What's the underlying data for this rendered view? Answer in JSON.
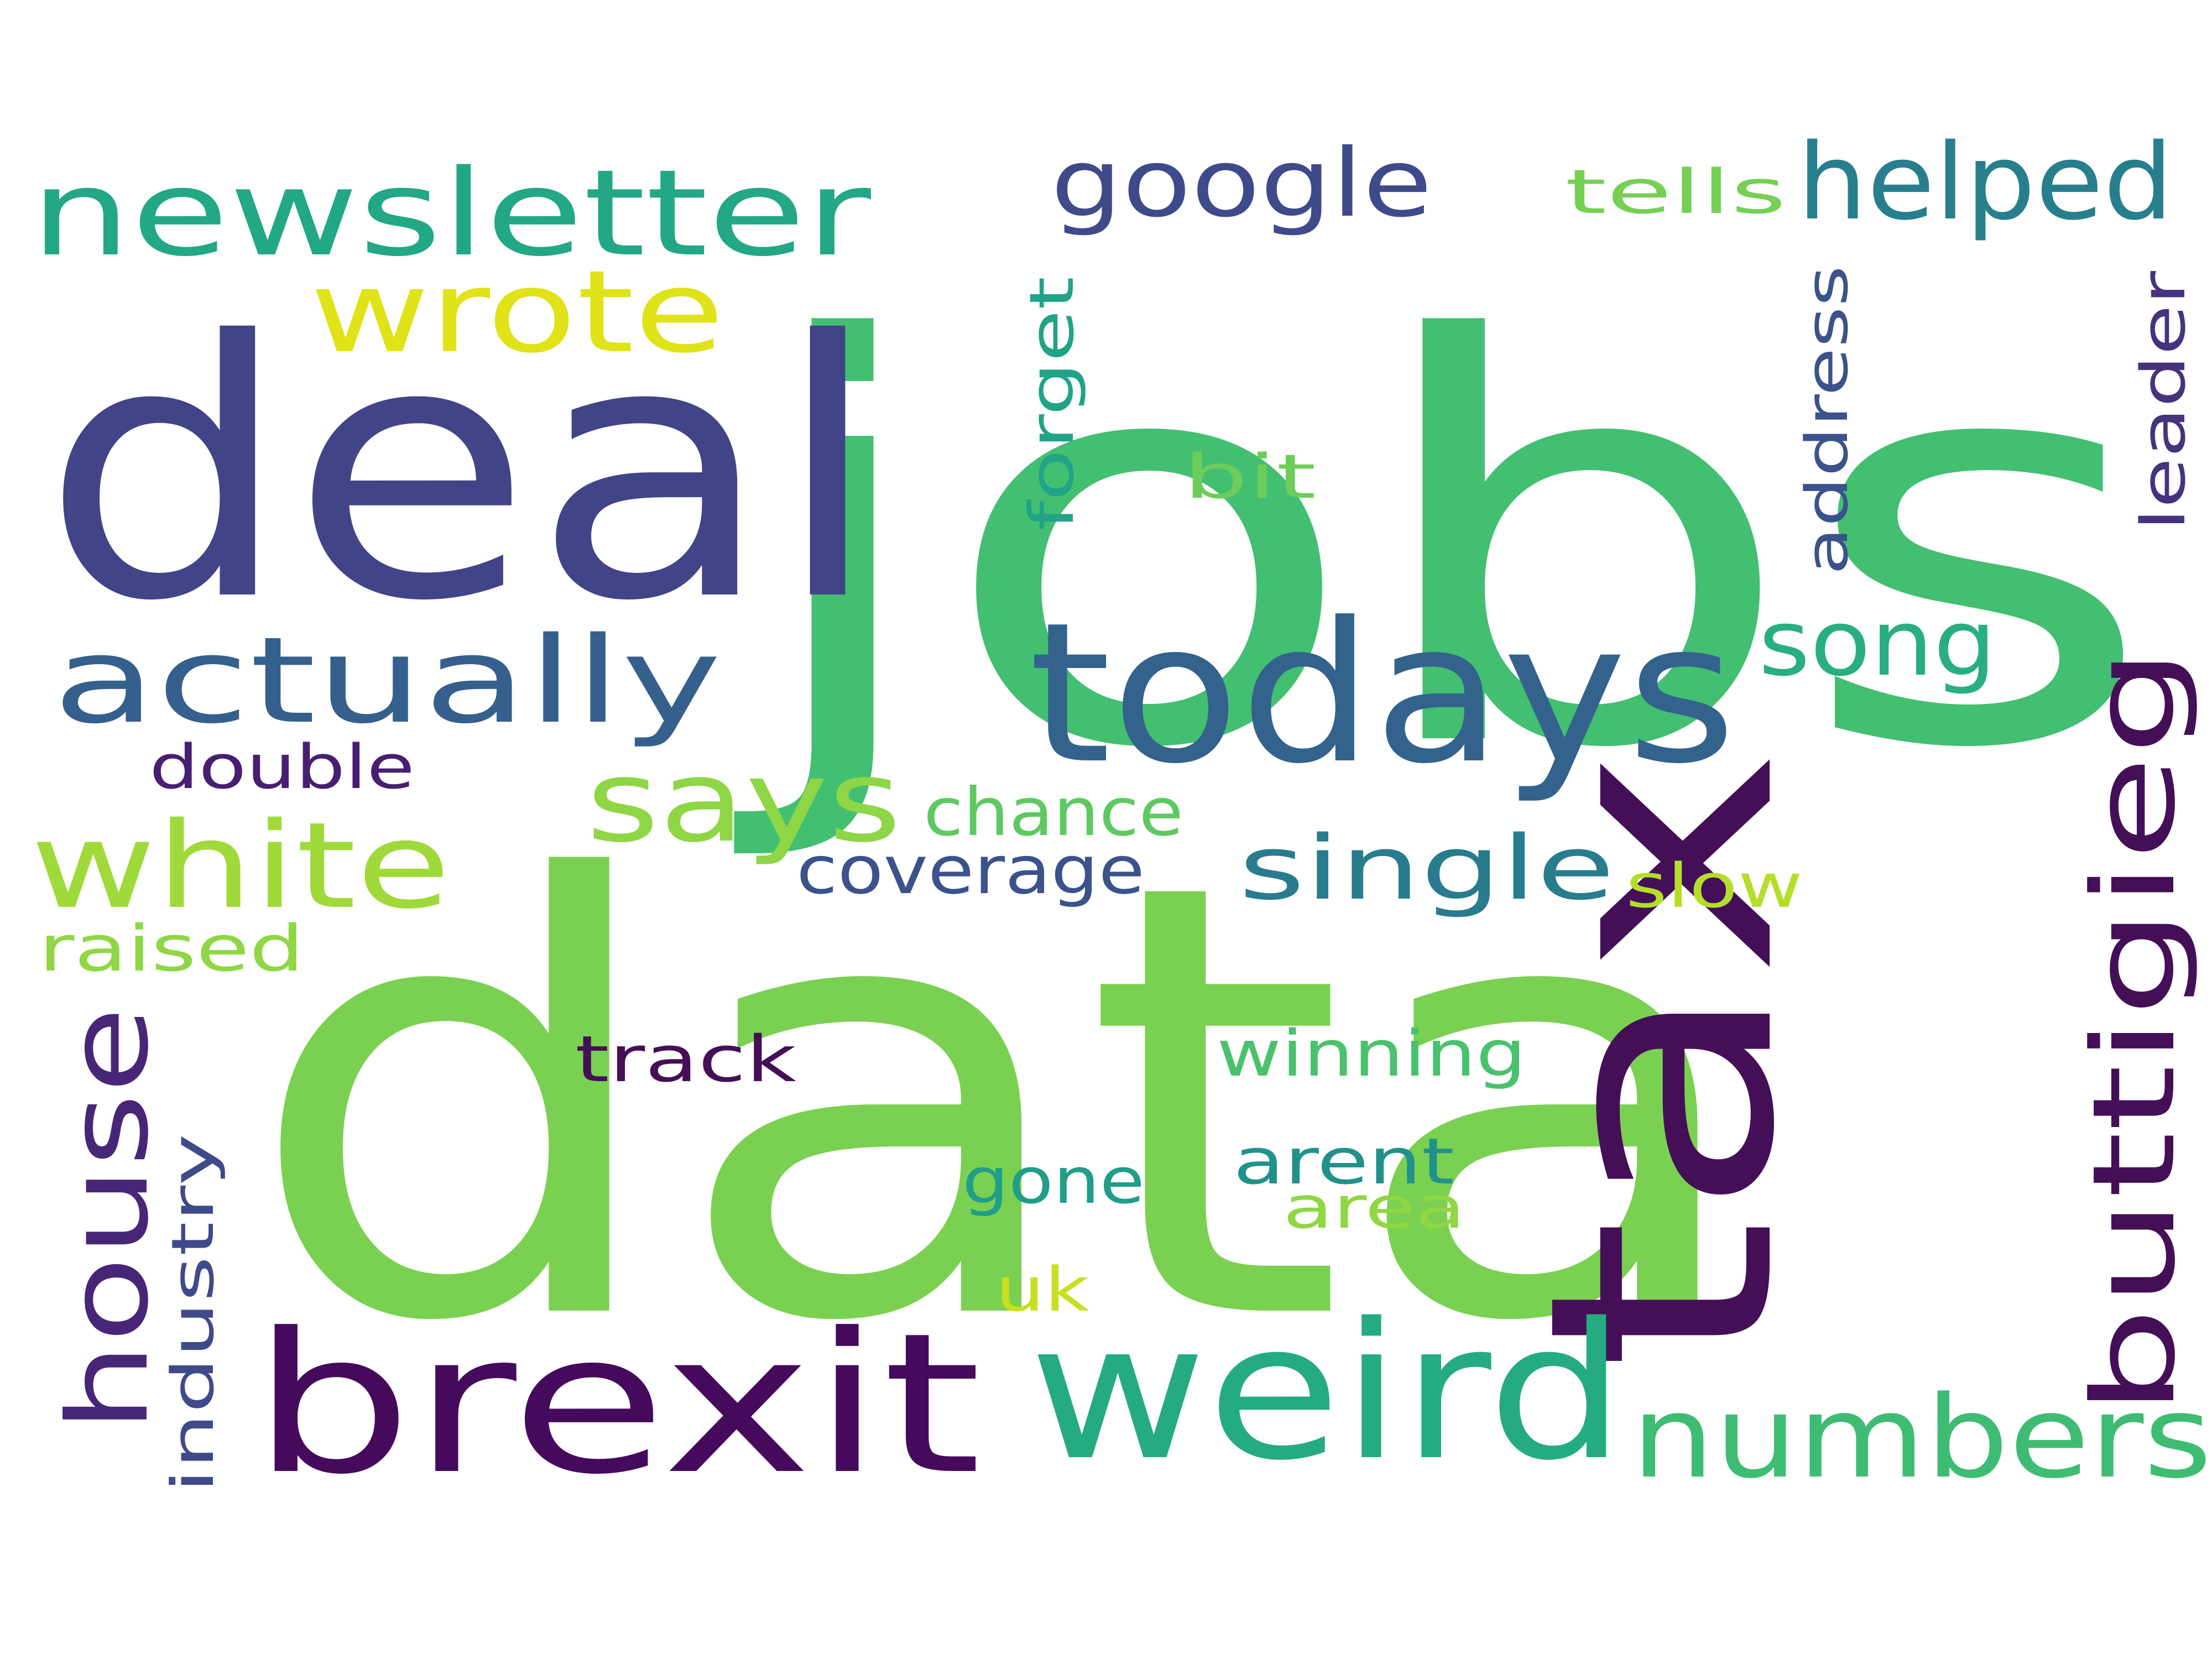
{
  "words": [
    {
      "text": "jobs",
      "color": "#43bf71"
    },
    {
      "text": "data",
      "color": "#7ad151"
    },
    {
      "text": "deal",
      "color": "#414487"
    },
    {
      "text": "tax",
      "color": "#440f57"
    },
    {
      "text": "todays",
      "color": "#33638d"
    },
    {
      "text": "brexit",
      "color": "#450a5c"
    },
    {
      "text": "weird",
      "color": "#25ab82"
    },
    {
      "text": "newsletter",
      "color": "#22a884"
    },
    {
      "text": "actually",
      "color": "#35608d"
    },
    {
      "text": "white",
      "color": "#9fda3a"
    },
    {
      "text": "house",
      "color": "#482677"
    },
    {
      "text": "says",
      "color": "#8ed645"
    },
    {
      "text": "wrote",
      "color": "#dfe318"
    },
    {
      "text": "buttigieg",
      "color": "#440f57"
    },
    {
      "text": "numbers",
      "color": "#3fbc73"
    },
    {
      "text": "google",
      "color": "#3e4a89"
    },
    {
      "text": "helped",
      "color": "#277f8e"
    },
    {
      "text": "single",
      "color": "#287c8e"
    },
    {
      "text": "song",
      "color": "#29af7f"
    },
    {
      "text": "coverage",
      "color": "#3b528b"
    },
    {
      "text": "chance",
      "color": "#5ec962"
    },
    {
      "text": "double",
      "color": "#481f70"
    },
    {
      "text": "raised",
      "color": "#8fd744"
    },
    {
      "text": "forget",
      "color": "#20a386"
    },
    {
      "text": "bit",
      "color": "#6ccd5a"
    },
    {
      "text": "address",
      "color": "#3b528b"
    },
    {
      "text": "leader",
      "color": "#46337e"
    },
    {
      "text": "tells",
      "color": "#75d054"
    },
    {
      "text": "slow",
      "color": "#b5de2b"
    },
    {
      "text": "track",
      "color": "#440f57"
    },
    {
      "text": "winning",
      "color": "#4ac16d"
    },
    {
      "text": "industry",
      "color": "#3e4a89"
    },
    {
      "text": "gone",
      "color": "#1f9e89"
    },
    {
      "text": "arent",
      "color": "#21918c"
    },
    {
      "text": "area",
      "color": "#90d743"
    },
    {
      "text": "uk",
      "color": "#c8e020"
    }
  ]
}
